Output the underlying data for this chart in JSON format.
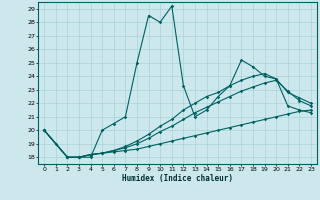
{
  "xlabel": "Humidex (Indice chaleur)",
  "xlim": [
    -0.5,
    23.5
  ],
  "ylim": [
    17.5,
    29.5
  ],
  "xticks": [
    0,
    1,
    2,
    3,
    4,
    5,
    6,
    7,
    8,
    9,
    10,
    11,
    12,
    13,
    14,
    15,
    16,
    17,
    18,
    19,
    20,
    21,
    22,
    23
  ],
  "yticks": [
    18,
    19,
    20,
    21,
    22,
    23,
    24,
    25,
    26,
    27,
    28,
    29
  ],
  "bg_color": "#cce8ec",
  "grid_color": "#a8d4d8",
  "line_color": "#006060",
  "lines": [
    {
      "x": [
        0,
        1,
        2,
        3,
        4,
        5,
        6,
        7,
        8,
        9,
        10,
        11,
        12,
        13,
        14,
        15,
        16,
        17,
        18,
        19,
        20,
        21,
        22,
        23
      ],
      "y": [
        20,
        19,
        18,
        18,
        18,
        20,
        20.5,
        21,
        25,
        28.5,
        28,
        29.2,
        23.3,
        21,
        21.5,
        22.5,
        23.3,
        25.2,
        24.7,
        24.0,
        23.8,
        21.8,
        21.5,
        21.3
      ]
    },
    {
      "x": [
        0,
        2,
        3,
        4,
        5,
        6,
        7,
        8,
        9,
        10,
        11,
        12,
        13,
        14,
        15,
        16,
        17,
        18,
        19,
        20,
        21,
        22,
        23
      ],
      "y": [
        20,
        18,
        18,
        18.2,
        18.3,
        18.4,
        18.5,
        18.6,
        18.8,
        19.0,
        19.2,
        19.4,
        19.6,
        19.8,
        20.0,
        20.2,
        20.4,
        20.6,
        20.8,
        21.0,
        21.2,
        21.4,
        21.5
      ]
    },
    {
      "x": [
        0,
        2,
        3,
        4,
        5,
        6,
        7,
        8,
        9,
        10,
        11,
        12,
        13,
        14,
        15,
        16,
        17,
        18,
        19,
        20,
        21,
        22,
        23
      ],
      "y": [
        20,
        18,
        18,
        18.2,
        18.3,
        18.5,
        18.7,
        19.0,
        19.4,
        19.9,
        20.3,
        20.8,
        21.3,
        21.7,
        22.1,
        22.5,
        22.9,
        23.2,
        23.5,
        23.7,
        22.9,
        22.2,
        21.8
      ]
    },
    {
      "x": [
        0,
        2,
        3,
        4,
        5,
        6,
        7,
        8,
        9,
        10,
        11,
        12,
        13,
        14,
        15,
        16,
        17,
        18,
        19,
        20,
        21,
        22,
        23
      ],
      "y": [
        20,
        18,
        18,
        18.2,
        18.3,
        18.5,
        18.8,
        19.2,
        19.7,
        20.3,
        20.8,
        21.5,
        22.0,
        22.5,
        22.8,
        23.3,
        23.7,
        24.0,
        24.2,
        23.8,
        22.8,
        22.4,
        22.0
      ]
    }
  ]
}
